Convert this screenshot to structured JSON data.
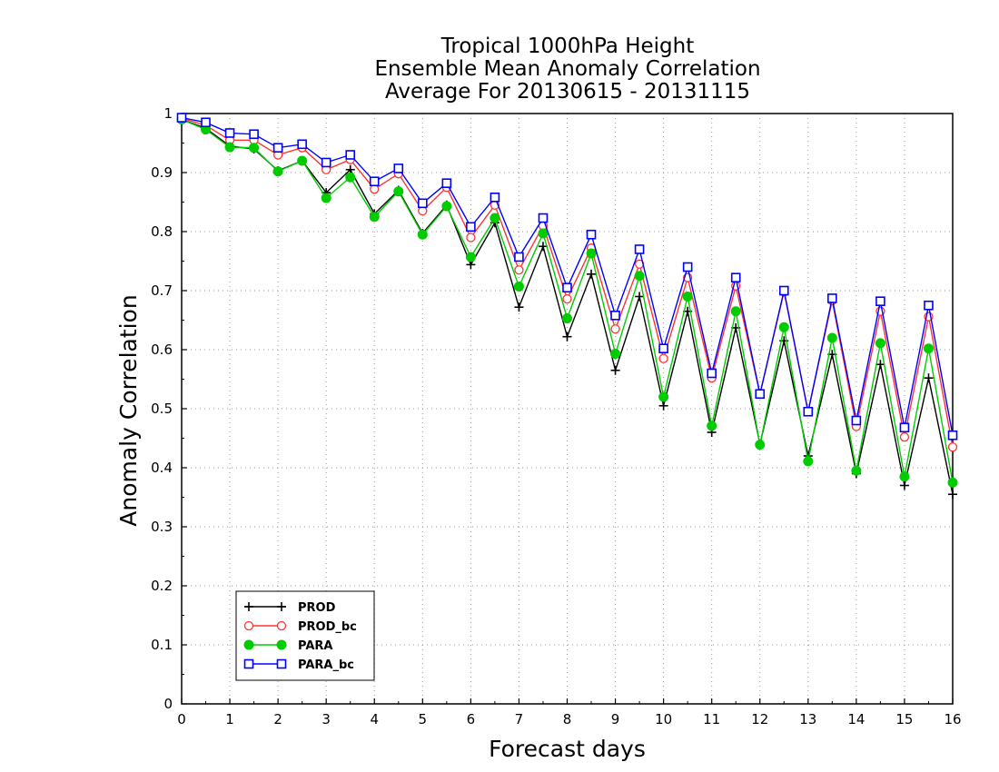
{
  "chart_data": {
    "type": "line",
    "title_lines": [
      "Tropical 1000hPa Height",
      "Ensemble Mean Anomaly Correlation",
      "Average For 20130615 - 20131115"
    ],
    "xlabel": "Forecast days",
    "ylabel": "Anomaly Correlation",
    "xlim": [
      0,
      16
    ],
    "ylim": [
      0,
      1
    ],
    "x_ticks": [
      "0",
      "1",
      "2",
      "3",
      "4",
      "5",
      "6",
      "7",
      "8",
      "9",
      "10",
      "11",
      "12",
      "13",
      "14",
      "15",
      "16"
    ],
    "y_ticks": [
      "0",
      "0.1",
      "0.2",
      "0.3",
      "0.4",
      "0.5",
      "0.6",
      "0.7",
      "0.8",
      "0.9",
      "1"
    ],
    "grid": true,
    "legend_position": "bottom-left",
    "x": [
      0,
      0.5,
      1,
      1.5,
      2,
      2.5,
      3,
      3.5,
      4,
      4.5,
      5,
      5.5,
      6,
      6.5,
      7,
      7.5,
      8,
      8.5,
      9,
      9.5,
      10,
      10.5,
      11,
      11.5,
      12,
      12.5,
      13,
      13.5,
      14,
      14.5,
      15,
      15.5,
      16
    ],
    "series": [
      {
        "name": "PROD",
        "color": "#000000",
        "marker": "plus",
        "values": [
          0.99,
          0.975,
          0.945,
          0.94,
          0.903,
          0.92,
          0.866,
          0.905,
          0.83,
          0.87,
          0.797,
          0.845,
          0.744,
          0.815,
          0.672,
          0.775,
          0.622,
          0.728,
          0.565,
          0.69,
          0.505,
          0.665,
          0.46,
          0.637,
          0.44,
          0.615,
          0.42,
          0.592,
          0.39,
          0.575,
          0.37,
          0.552,
          0.355
        ]
      },
      {
        "name": "PROD_bc",
        "color": "#ff3333",
        "marker": "open-circle",
        "values": [
          0.992,
          0.98,
          0.955,
          0.955,
          0.93,
          0.942,
          0.905,
          0.922,
          0.872,
          0.898,
          0.835,
          0.875,
          0.79,
          0.845,
          0.735,
          0.81,
          0.686,
          0.772,
          0.635,
          0.745,
          0.585,
          0.722,
          0.552,
          0.708,
          0.525,
          0.698,
          0.495,
          0.683,
          0.47,
          0.665,
          0.452,
          0.656,
          0.435
        ]
      },
      {
        "name": "PARA",
        "color": "#00cc00",
        "marker": "filled-circle",
        "values": [
          0.99,
          0.973,
          0.943,
          0.942,
          0.902,
          0.92,
          0.857,
          0.892,
          0.825,
          0.868,
          0.795,
          0.843,
          0.757,
          0.823,
          0.707,
          0.797,
          0.653,
          0.763,
          0.593,
          0.725,
          0.52,
          0.69,
          0.471,
          0.665,
          0.439,
          0.638,
          0.411,
          0.62,
          0.395,
          0.611,
          0.385,
          0.602,
          0.375
        ]
      },
      {
        "name": "PARA_bc",
        "color": "#0000ff",
        "marker": "open-square",
        "values": [
          0.993,
          0.985,
          0.967,
          0.965,
          0.942,
          0.948,
          0.917,
          0.93,
          0.885,
          0.907,
          0.848,
          0.882,
          0.808,
          0.858,
          0.757,
          0.823,
          0.705,
          0.795,
          0.658,
          0.77,
          0.602,
          0.74,
          0.56,
          0.722,
          0.525,
          0.7,
          0.495,
          0.687,
          0.48,
          0.682,
          0.468,
          0.675,
          0.455
        ]
      }
    ]
  }
}
